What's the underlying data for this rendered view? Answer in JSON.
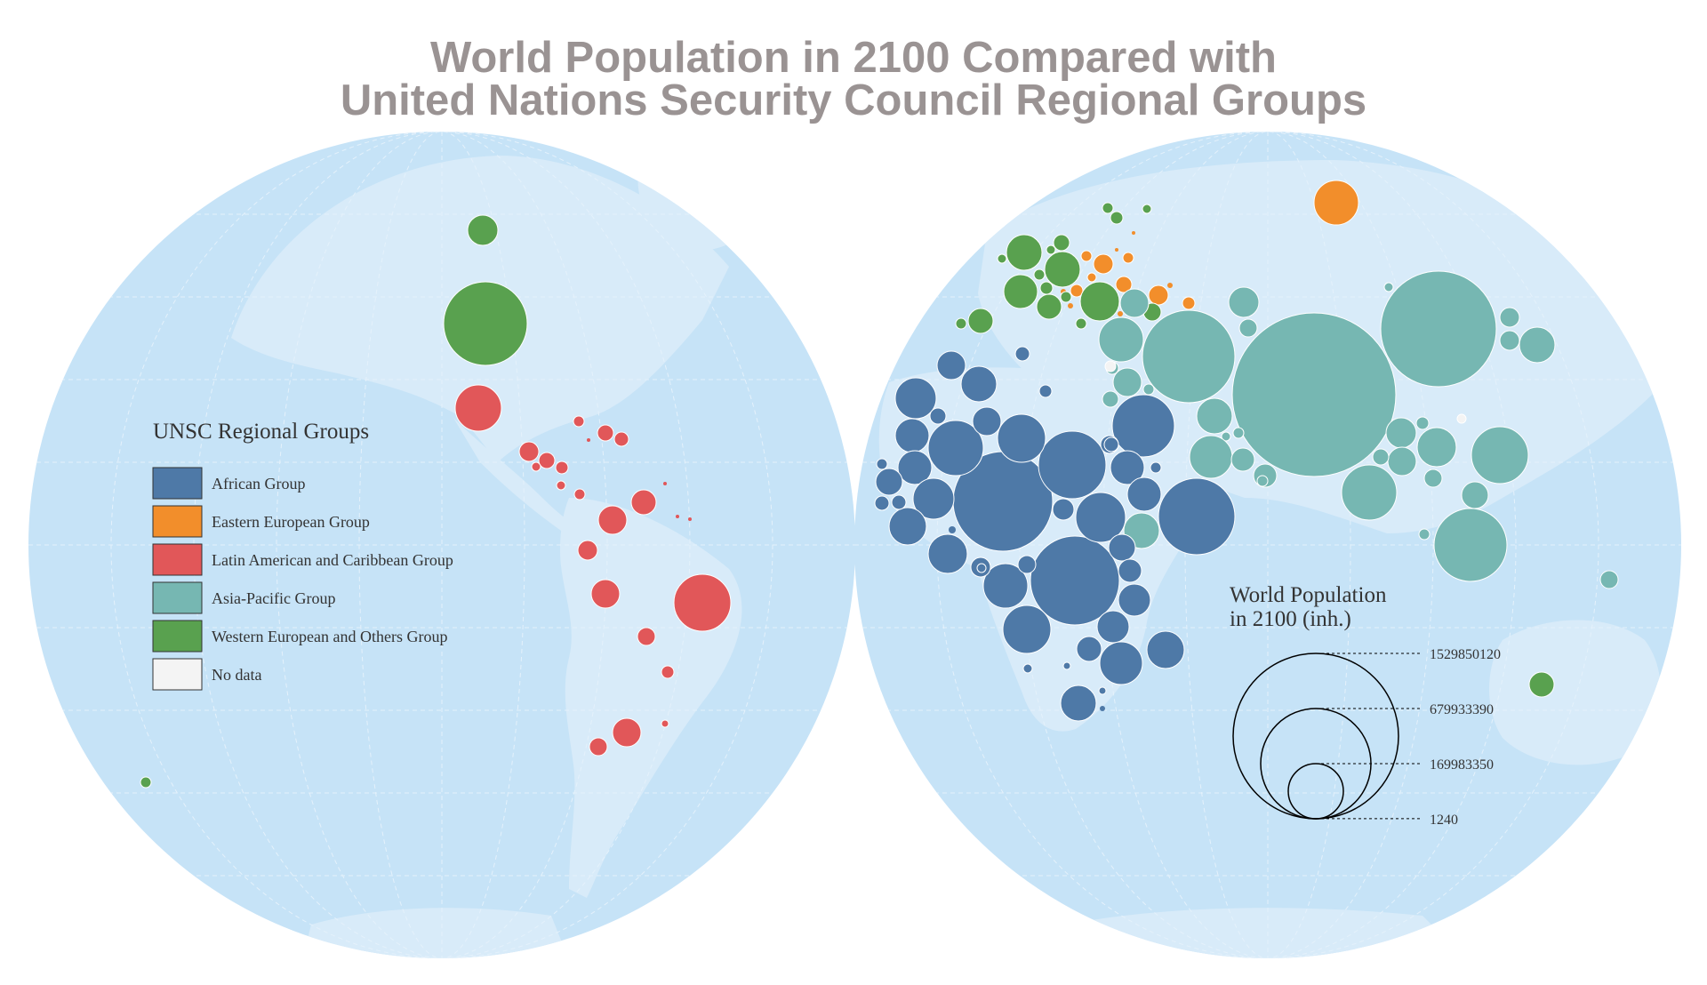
{
  "title": {
    "line1": "World Population in 2100 Compared with",
    "line2": "United Nations Security Council Regional Groups"
  },
  "colors": {
    "ocean": "#c6e3f7",
    "land": "#d8ebf9",
    "graticule": "#e4f1fb",
    "african": "#4e79a7",
    "eastern_european": "#f28e2b",
    "latin_american": "#e15759",
    "asia_pacific": "#76b7b2",
    "western_european": "#59a14f",
    "no_data": "#f4f4f4"
  },
  "legend": {
    "title": "UNSC Regional Groups",
    "items": [
      {
        "label": "African Group",
        "color": "#4e79a7"
      },
      {
        "label": "Eastern European Group",
        "color": "#f28e2b"
      },
      {
        "label": "Latin American and Caribbean Group",
        "color": "#e15759"
      },
      {
        "label": "Asia-Pacific Group",
        "color": "#76b7b2"
      },
      {
        "label": "Western European and Others Group",
        "color": "#59a14f"
      },
      {
        "label": "No data",
        "color": "#f4f4f4"
      }
    ]
  },
  "size_legend": {
    "title_line1": "World Population",
    "title_line2": "in 2100 (inh.)",
    "values": [
      1529850120,
      679933390,
      169983350,
      1240
    ],
    "labels": [
      "1529850120",
      "679933390",
      "169983350",
      "1240"
    ]
  }
}
